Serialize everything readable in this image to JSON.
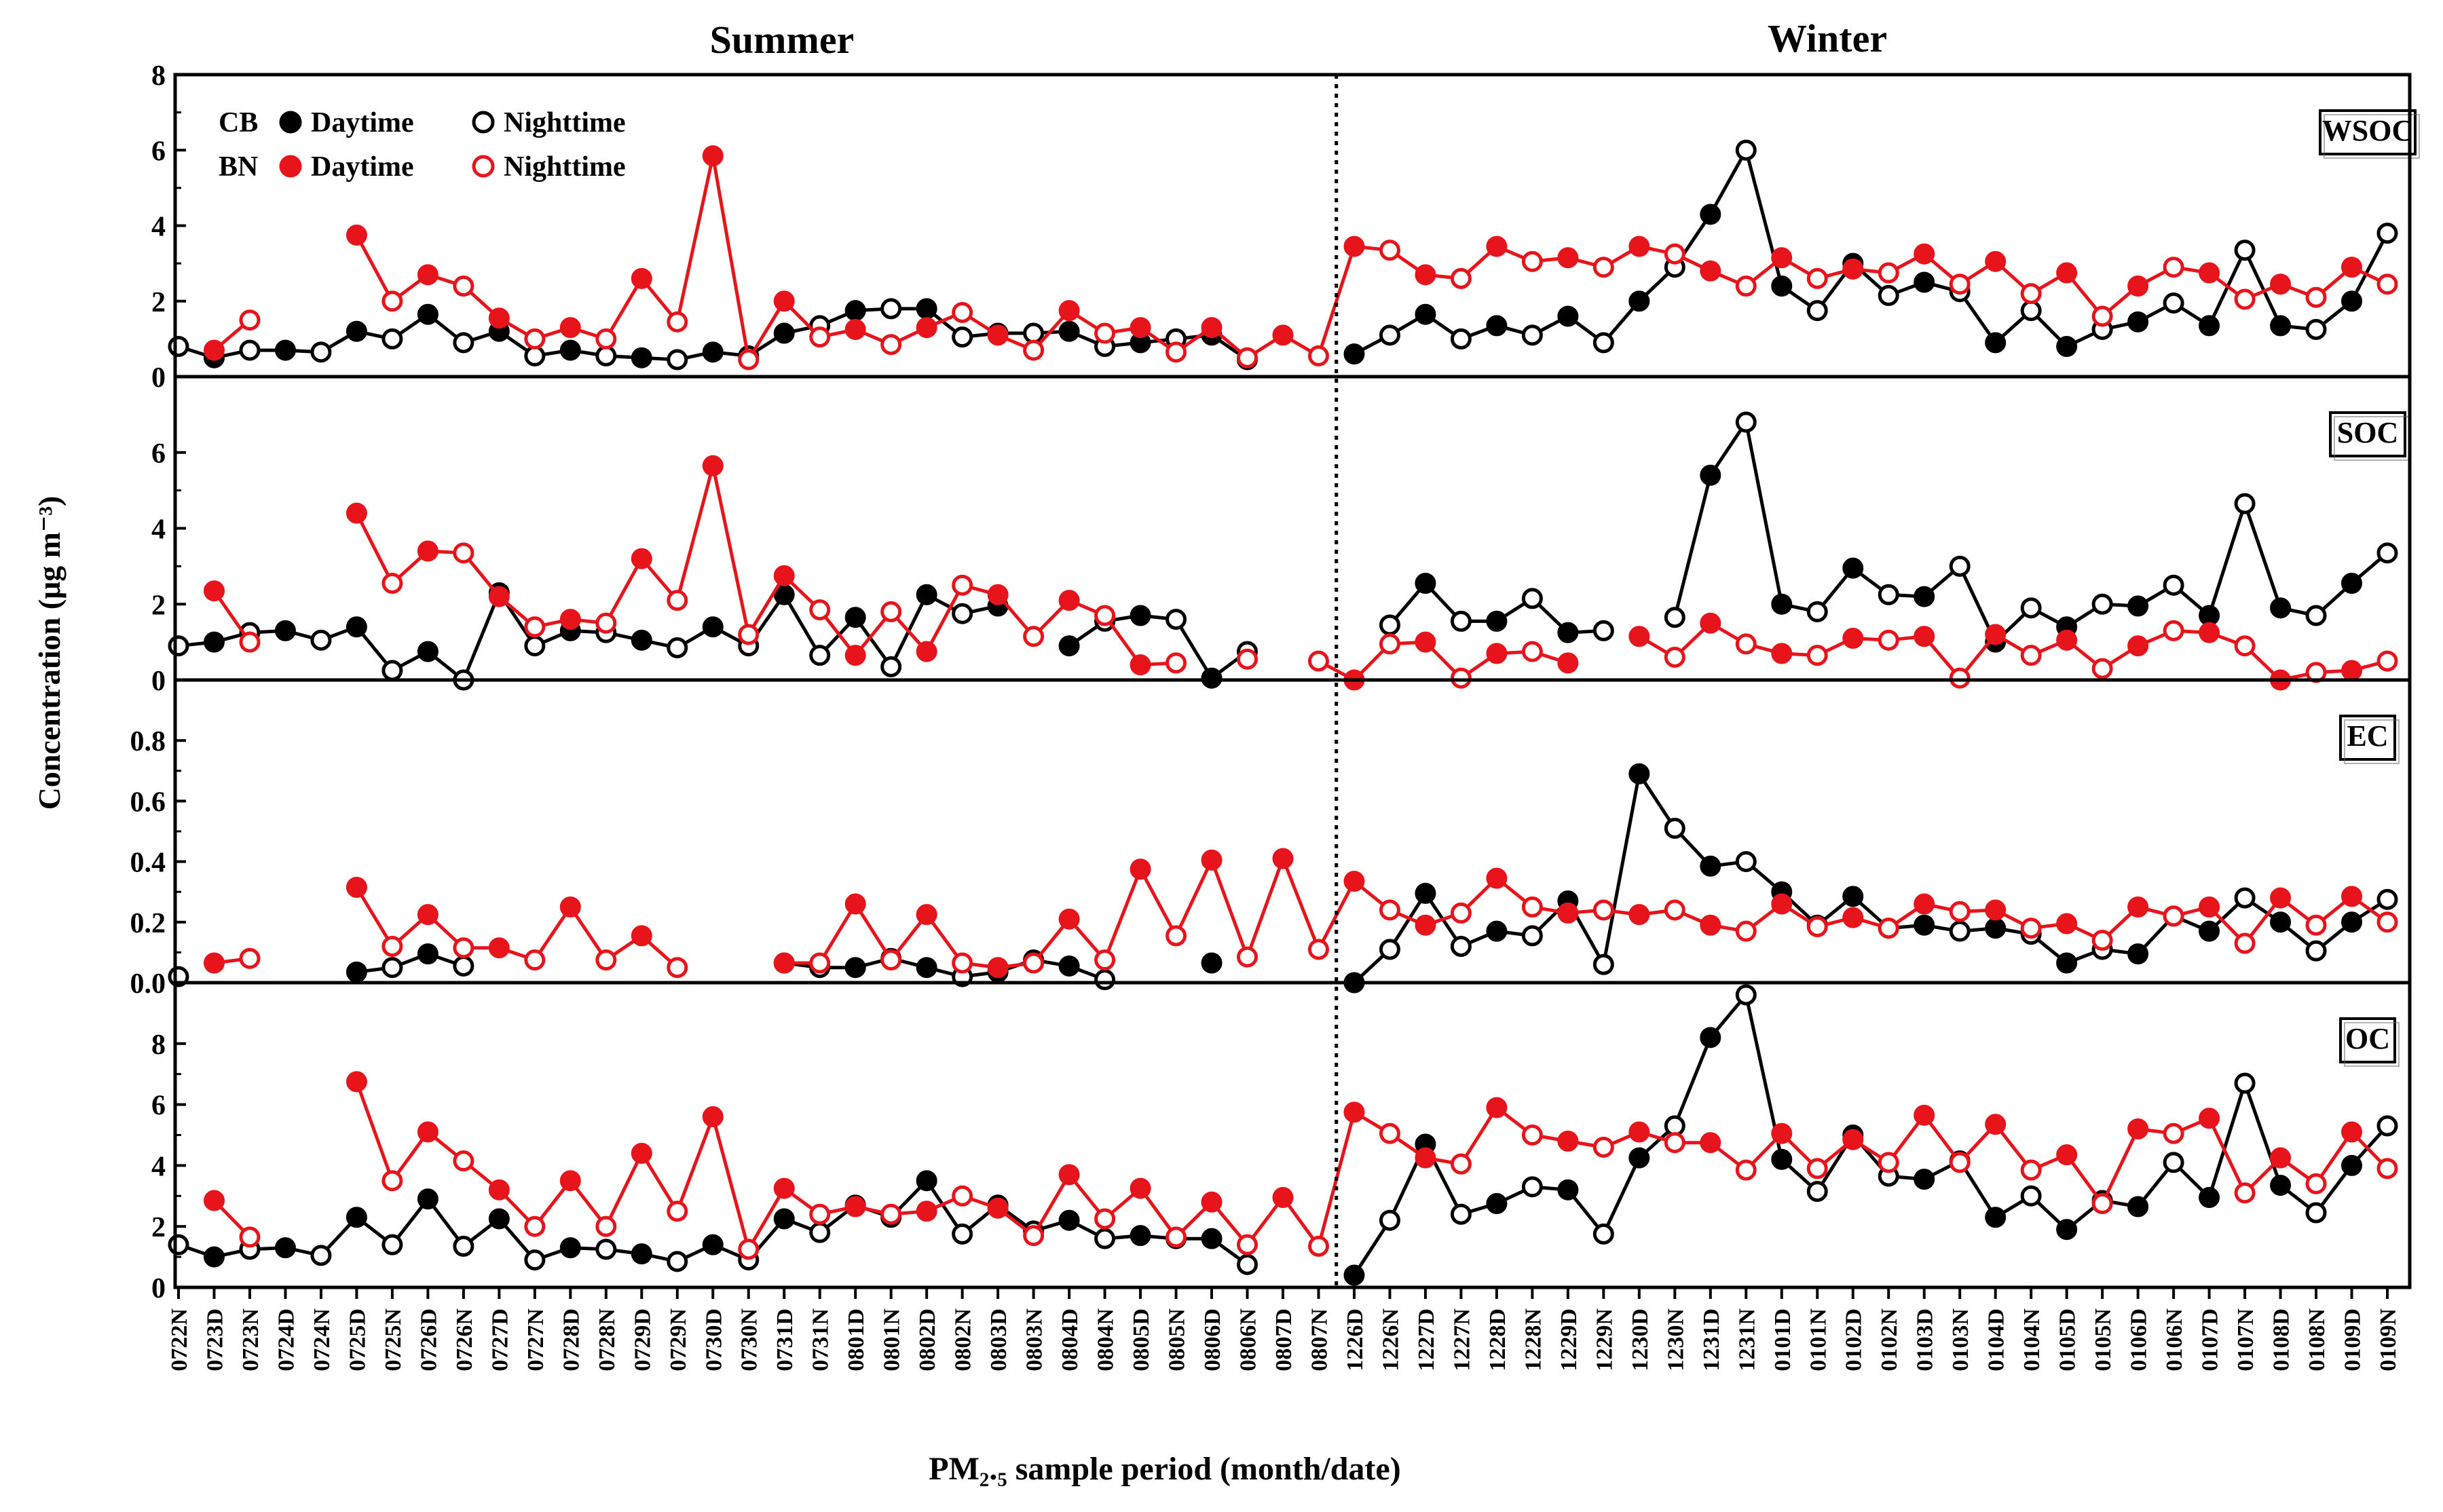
{
  "chart_data": {
    "type": "line",
    "figure_title_left": "Summer",
    "figure_title_right": "Winter",
    "ylabel": "Concentration (μg m⁻³)",
    "xlabel": "PM₂.₅ sample period (month/date)",
    "legend": {
      "CB": "CB",
      "BN": "BN",
      "day": "Daytime",
      "night": "Nighttime"
    },
    "colors": {
      "CB": "#000000",
      "BN": "#e8141b"
    },
    "categories": [
      "0722N",
      "0723D",
      "0723N",
      "0724D",
      "0724N",
      "0725D",
      "0725N",
      "0726D",
      "0726N",
      "0727D",
      "0727N",
      "0728D",
      "0728N",
      "0729D",
      "0729N",
      "0730D",
      "0730N",
      "0731D",
      "0731N",
      "0801D",
      "0801N",
      "0802D",
      "0802N",
      "0803D",
      "0803N",
      "0804D",
      "0804N",
      "0805D",
      "0805N",
      "0806D",
      "0806N",
      "0807D",
      "0807N",
      "1226D",
      "1226N",
      "1227D",
      "1227N",
      "1228D",
      "1228N",
      "1229D",
      "1229N",
      "1230D",
      "1230N",
      "1231D",
      "1231N",
      "0101D",
      "0101N",
      "0102D",
      "0102N",
      "0103D",
      "0103N",
      "0104D",
      "0104N",
      "0105D",
      "0105N",
      "0106D",
      "0106N",
      "0107D",
      "0107N",
      "0108D",
      "0108N",
      "0109D",
      "0109N"
    ],
    "season_split_after": "0807N",
    "panels": [
      {
        "name": "WSOC",
        "ylim": [
          0,
          8
        ],
        "yticks": [
          0,
          2,
          4,
          6,
          8
        ],
        "tick_labels": [
          "0",
          "2",
          "4",
          "6",
          "8"
        ],
        "series": [
          {
            "name": "CB",
            "values": [
              0.8,
              0.5,
              0.7,
              0.7,
              0.65,
              1.2,
              1.0,
              1.65,
              0.9,
              1.2,
              0.55,
              0.7,
              0.55,
              0.5,
              0.45,
              0.65,
              0.55,
              1.15,
              1.35,
              1.75,
              1.8,
              1.8,
              1.05,
              1.15,
              1.15,
              1.2,
              0.8,
              0.9,
              1.0,
              1.1,
              0.45,
              null,
              null,
              0.6,
              1.1,
              1.65,
              1.0,
              1.35,
              1.1,
              1.6,
              0.9,
              2.0,
              2.9,
              4.3,
              6.0,
              2.4,
              1.75,
              3.0,
              2.15,
              2.5,
              2.25,
              0.9,
              1.75,
              0.8,
              1.25,
              1.45,
              1.95,
              1.35,
              3.35,
              1.35,
              1.25,
              2.0,
              3.8
            ]
          },
          {
            "name": "BN",
            "values": [
              null,
              0.7,
              1.5,
              null,
              null,
              3.75,
              2.0,
              2.7,
              2.4,
              1.55,
              1.0,
              1.3,
              1.0,
              2.6,
              1.45,
              5.85,
              0.45,
              2.0,
              1.05,
              1.25,
              0.85,
              1.3,
              1.7,
              1.1,
              0.7,
              1.75,
              1.15,
              1.3,
              0.65,
              1.3,
              0.5,
              1.1,
              0.55,
              3.45,
              3.35,
              2.7,
              2.6,
              3.45,
              3.05,
              3.15,
              2.9,
              3.45,
              3.25,
              2.8,
              2.4,
              3.15,
              2.6,
              2.85,
              2.75,
              3.25,
              2.45,
              3.05,
              2.2,
              2.75,
              1.6,
              2.4,
              2.9,
              2.75,
              2.05,
              2.45,
              2.1,
              2.9,
              2.45
            ]
          }
        ]
      },
      {
        "name": "SOC",
        "ylim": [
          0,
          8
        ],
        "yticks": [
          0,
          2,
          4,
          6
        ],
        "tick_labels": [
          "0",
          "2",
          "4",
          "6"
        ],
        "series": [
          {
            "name": "CB",
            "values": [
              0.9,
              1.0,
              1.25,
              1.3,
              1.05,
              1.4,
              0.25,
              0.75,
              0.0,
              2.3,
              0.9,
              1.3,
              1.25,
              1.05,
              0.85,
              1.4,
              0.9,
              2.25,
              0.65,
              1.65,
              0.35,
              2.25,
              1.75,
              1.95,
              null,
              0.9,
              1.55,
              1.7,
              1.6,
              0.05,
              0.75,
              null,
              null,
              null,
              1.45,
              2.55,
              1.55,
              1.55,
              2.15,
              1.25,
              1.3,
              null,
              1.65,
              5.4,
              6.8,
              2.0,
              1.8,
              2.95,
              2.25,
              2.2,
              3.0,
              1.0,
              1.9,
              1.4,
              2.0,
              1.95,
              2.5,
              1.7,
              4.65,
              1.9,
              1.7,
              2.55,
              3.35
            ]
          },
          {
            "name": "BN",
            "values": [
              null,
              2.35,
              1.0,
              null,
              null,
              4.4,
              2.55,
              3.4,
              3.35,
              2.2,
              1.4,
              1.6,
              1.5,
              3.2,
              2.1,
              5.65,
              1.2,
              2.75,
              1.85,
              0.65,
              1.8,
              0.75,
              2.5,
              2.25,
              1.15,
              2.1,
              1.7,
              0.4,
              0.45,
              null,
              0.55,
              null,
              0.5,
              0.0,
              0.95,
              1.0,
              0.05,
              0.7,
              0.75,
              0.45,
              null,
              1.15,
              0.6,
              1.5,
              0.95,
              0.7,
              0.65,
              1.1,
              1.05,
              1.15,
              0.05,
              1.2,
              0.65,
              1.05,
              0.3,
              0.9,
              1.3,
              1.25,
              0.9,
              0.0,
              0.2,
              0.25,
              0.5
            ]
          }
        ]
      },
      {
        "name": "EC",
        "ylim": [
          0,
          1.0
        ],
        "yticks": [
          0.0,
          0.2,
          0.4,
          0.6,
          0.8
        ],
        "tick_labels": [
          "0.0",
          "0.2",
          "0.4",
          "0.6",
          "0.8"
        ],
        "series": [
          {
            "name": "CB",
            "values": [
              0.02,
              null,
              null,
              null,
              null,
              0.035,
              0.05,
              0.095,
              0.055,
              null,
              null,
              null,
              null,
              null,
              null,
              null,
              null,
              0.065,
              0.05,
              0.05,
              0.08,
              0.05,
              0.02,
              0.035,
              0.075,
              0.055,
              0.01,
              null,
              null,
              0.065,
              null,
              null,
              null,
              0.0,
              0.11,
              0.295,
              0.12,
              0.17,
              0.155,
              0.27,
              0.06,
              0.69,
              0.51,
              0.385,
              0.4,
              0.3,
              0.19,
              0.285,
              0.18,
              0.19,
              0.17,
              0.18,
              0.16,
              0.065,
              0.11,
              0.095,
              0.22,
              0.17,
              0.28,
              0.2,
              0.105,
              0.2,
              0.275
            ]
          },
          {
            "name": "BN",
            "values": [
              null,
              0.065,
              0.08,
              null,
              null,
              0.315,
              0.12,
              0.225,
              0.115,
              0.115,
              0.075,
              0.25,
              0.075,
              0.155,
              0.05,
              null,
              null,
              0.065,
              0.065,
              0.26,
              0.075,
              0.225,
              0.065,
              0.05,
              0.065,
              0.21,
              0.075,
              0.375,
              0.155,
              0.405,
              0.085,
              0.41,
              0.11,
              0.335,
              0.24,
              0.19,
              0.23,
              0.345,
              0.25,
              0.23,
              0.24,
              0.225,
              0.24,
              0.19,
              0.17,
              0.26,
              0.185,
              0.215,
              0.18,
              0.26,
              0.235,
              0.24,
              0.18,
              0.195,
              0.14,
              0.25,
              0.22,
              0.25,
              0.13,
              0.28,
              0.19,
              0.285,
              0.2
            ]
          }
        ]
      },
      {
        "name": "OC",
        "ylim": [
          0,
          10
        ],
        "yticks": [
          0,
          2,
          4,
          6,
          8
        ],
        "tick_labels": [
          "0",
          "2",
          "4",
          "6",
          "8"
        ],
        "series": [
          {
            "name": "CB",
            "values": [
              1.4,
              1.0,
              1.25,
              1.3,
              1.05,
              2.3,
              1.4,
              2.9,
              1.35,
              2.25,
              0.9,
              1.3,
              1.25,
              1.1,
              0.85,
              1.4,
              0.9,
              2.25,
              1.8,
              2.7,
              2.3,
              3.5,
              1.75,
              2.7,
              1.85,
              2.2,
              1.6,
              1.7,
              1.6,
              1.6,
              0.75,
              null,
              null,
              0.4,
              2.2,
              4.7,
              2.4,
              2.75,
              3.3,
              3.2,
              1.75,
              4.25,
              5.3,
              8.2,
              9.6,
              4.2,
              3.15,
              5.0,
              3.65,
              3.55,
              4.15,
              2.3,
              3.0,
              1.9,
              2.85,
              2.65,
              4.1,
              2.95,
              6.7,
              3.35,
              2.45,
              4.0,
              5.3
            ]
          },
          {
            "name": "BN",
            "values": [
              null,
              2.85,
              1.65,
              null,
              null,
              6.75,
              3.5,
              5.1,
              4.15,
              3.2,
              2.0,
              3.5,
              2.0,
              4.4,
              2.5,
              5.6,
              1.25,
              3.25,
              2.4,
              2.65,
              2.4,
              2.5,
              3.0,
              2.6,
              1.7,
              3.7,
              2.25,
              3.25,
              1.65,
              2.8,
              1.4,
              2.95,
              1.35,
              5.75,
              5.05,
              4.25,
              4.05,
              5.9,
              5.0,
              4.8,
              4.6,
              5.1,
              4.75,
              4.75,
              3.85,
              5.05,
              3.9,
              4.85,
              4.1,
              5.65,
              4.1,
              5.35,
              3.85,
              4.35,
              2.75,
              5.2,
              5.05,
              5.55,
              3.1,
              4.25,
              3.4,
              5.1,
              3.9
            ]
          }
        ]
      }
    ]
  }
}
